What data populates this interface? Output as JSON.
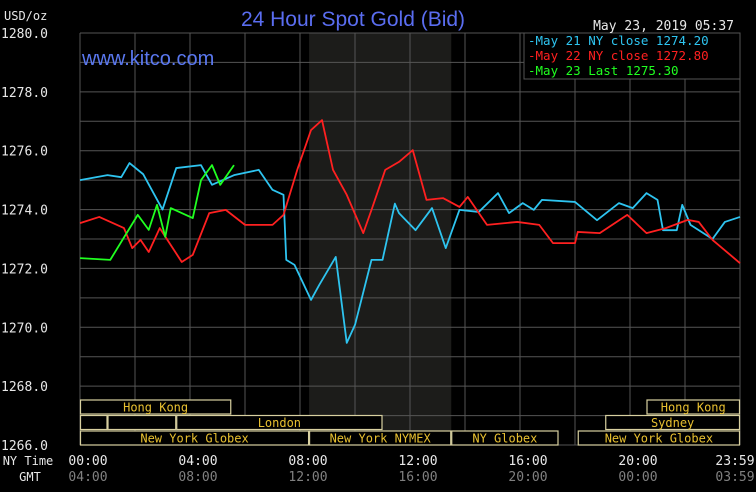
{
  "chart_data": {
    "type": "line",
    "title": "24 Hour Spot Gold (Bid)",
    "ylabel": "USD/oz",
    "watermark": "www.kitco.com",
    "timestamp": "May 23, 2019 05:37",
    "ylim": [
      1266,
      1280
    ],
    "yticks": [
      "1280.0",
      "1278.0",
      "1276.0",
      "1274.0",
      "1272.0",
      "1270.0",
      "1268.0",
      "1266.0"
    ],
    "xlim_hours": [
      0,
      24
    ],
    "grid": true,
    "legend_position": "top-right",
    "x_axis_rows": [
      {
        "label": "NY Time",
        "ticks": [
          "00:00",
          "04:00",
          "08:00",
          "12:00",
          "16:00",
          "20:00",
          "23:59"
        ],
        "color": "#e8e8e8"
      },
      {
        "label": "GMT",
        "ticks": [
          "04:00",
          "08:00",
          "12:00",
          "16:00",
          "20:00",
          "00:00",
          "03:59"
        ],
        "color": "#808080"
      }
    ],
    "highlight_hours": [
      8.33,
      13.5
    ],
    "series": [
      {
        "name": "May 21 NY close 1274.20",
        "color": "#2ec4f0",
        "points": [
          [
            0,
            1275.0
          ],
          [
            1,
            1275.17
          ],
          [
            1.5,
            1275.1
          ],
          [
            1.8,
            1275.58
          ],
          [
            2.3,
            1275.2
          ],
          [
            3,
            1274.0
          ],
          [
            3.5,
            1275.41
          ],
          [
            4.4,
            1275.51
          ],
          [
            4.8,
            1274.84
          ],
          [
            5.6,
            1275.17
          ],
          [
            6.5,
            1275.35
          ],
          [
            7,
            1274.67
          ],
          [
            7.4,
            1274.5
          ],
          [
            7.5,
            1272.29
          ],
          [
            7.8,
            1272.12
          ],
          [
            8.4,
            1270.93
          ],
          [
            8.7,
            1271.44
          ],
          [
            9.3,
            1272.39
          ],
          [
            9.7,
            1269.47
          ],
          [
            10,
            1270.08
          ],
          [
            10.6,
            1272.29
          ],
          [
            11,
            1272.29
          ],
          [
            11.45,
            1274.2
          ],
          [
            11.6,
            1273.88
          ],
          [
            12.2,
            1273.3
          ],
          [
            12.8,
            1274.05
          ],
          [
            13.3,
            1272.69
          ],
          [
            13.8,
            1273.99
          ],
          [
            14.5,
            1273.92
          ],
          [
            15.2,
            1274.56
          ],
          [
            15.6,
            1273.88
          ],
          [
            16.1,
            1274.22
          ],
          [
            16.5,
            1273.99
          ],
          [
            16.8,
            1274.33
          ],
          [
            18,
            1274.26
          ],
          [
            18.8,
            1273.64
          ],
          [
            19.6,
            1274.22
          ],
          [
            20.1,
            1274.05
          ],
          [
            20.6,
            1274.56
          ],
          [
            21,
            1274.33
          ],
          [
            21.2,
            1273.3
          ],
          [
            21.7,
            1273.3
          ],
          [
            21.9,
            1274.16
          ],
          [
            22.2,
            1273.48
          ],
          [
            23,
            1273.0
          ],
          [
            23.45,
            1273.58
          ],
          [
            24,
            1273.75
          ]
        ]
      },
      {
        "name": "May 22 NY close 1272.80",
        "color": "#ff2020",
        "points": [
          [
            0,
            1273.54
          ],
          [
            0.7,
            1273.75
          ],
          [
            1.6,
            1273.37
          ],
          [
            1.9,
            1272.69
          ],
          [
            2.2,
            1272.97
          ],
          [
            2.5,
            1272.56
          ],
          [
            2.9,
            1273.37
          ],
          [
            3.7,
            1272.22
          ],
          [
            4.1,
            1272.46
          ],
          [
            4.7,
            1273.88
          ],
          [
            5.3,
            1273.99
          ],
          [
            6,
            1273.48
          ],
          [
            7,
            1273.48
          ],
          [
            7.4,
            1273.82
          ],
          [
            7.9,
            1275.35
          ],
          [
            8.4,
            1276.7
          ],
          [
            8.8,
            1277.04
          ],
          [
            9.2,
            1275.35
          ],
          [
            9.7,
            1274.5
          ],
          [
            10.3,
            1273.2
          ],
          [
            10.6,
            1273.99
          ],
          [
            11.1,
            1275.35
          ],
          [
            11.6,
            1275.62
          ],
          [
            12.1,
            1276.02
          ],
          [
            12.6,
            1274.33
          ],
          [
            13.2,
            1274.39
          ],
          [
            13.8,
            1274.09
          ],
          [
            14.1,
            1274.43
          ],
          [
            14.8,
            1273.48
          ],
          [
            15.9,
            1273.58
          ],
          [
            16.7,
            1273.48
          ],
          [
            17.2,
            1272.86
          ],
          [
            18,
            1272.86
          ],
          [
            18.1,
            1273.24
          ],
          [
            18.9,
            1273.2
          ],
          [
            19.9,
            1273.82
          ],
          [
            20.6,
            1273.2
          ],
          [
            21.3,
            1273.37
          ],
          [
            22.1,
            1273.65
          ],
          [
            22.5,
            1273.58
          ],
          [
            23,
            1272.97
          ],
          [
            24,
            1272.18
          ]
        ]
      },
      {
        "name": "May 23 Last 1275.30",
        "color": "#20ff20",
        "points": [
          [
            0,
            1272.35
          ],
          [
            1.1,
            1272.29
          ],
          [
            2.1,
            1273.82
          ],
          [
            2.5,
            1273.31
          ],
          [
            2.8,
            1274.16
          ],
          [
            3.1,
            1273.07
          ],
          [
            3.3,
            1274.05
          ],
          [
            4.1,
            1273.71
          ],
          [
            4.4,
            1275.0
          ],
          [
            4.8,
            1275.51
          ],
          [
            5.1,
            1274.84
          ],
          [
            5.6,
            1275.51
          ]
        ]
      }
    ],
    "sessions": [
      {
        "label": "Hong Kong",
        "row": 0,
        "start": 0,
        "end": 5.5
      },
      {
        "label": "Hong Kong",
        "row": 0,
        "start": 20.6,
        "end": 24
      },
      {
        "label": "",
        "row": 1,
        "start": 0,
        "end": 1
      },
      {
        "label": "",
        "row": 1,
        "start": 1,
        "end": 3.5
      },
      {
        "label": "London",
        "row": 1,
        "start": 3.5,
        "end": 11.0
      },
      {
        "label": "Sydney",
        "row": 1,
        "start": 19.1,
        "end": 24
      },
      {
        "label": "New York Globex",
        "row": 2,
        "start": 0,
        "end": 8.33
      },
      {
        "label": "New York NYMEX",
        "row": 2,
        "start": 8.33,
        "end": 13.5
      },
      {
        "label": "NY Globex",
        "row": 2,
        "start": 13.5,
        "end": 17.4
      },
      {
        "label": "New York Globex",
        "row": 2,
        "start": 18.1,
        "end": 24
      }
    ]
  }
}
